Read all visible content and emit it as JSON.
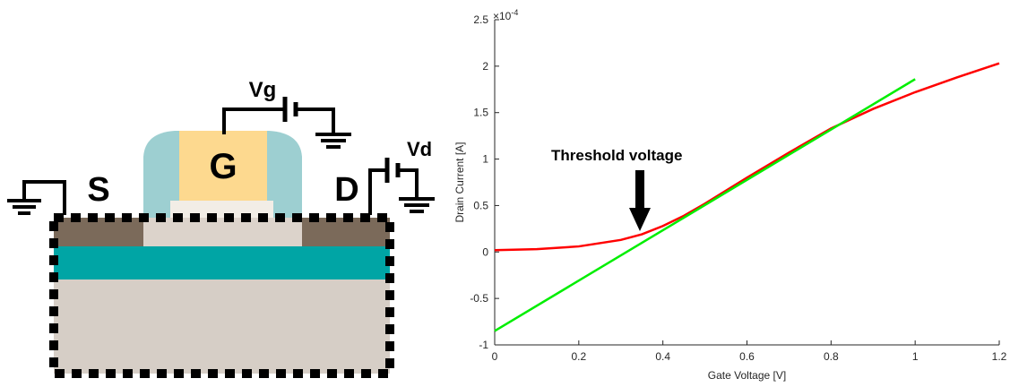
{
  "diagram": {
    "vg": "Vg",
    "gate": "G",
    "source": "S",
    "drain": "D",
    "vd": "Vd"
  },
  "chart_data": {
    "type": "line",
    "x_label": "Gate Voltage [V]",
    "y_label": "Drain Current [A]",
    "y_multiplier": {
      "base": "×10",
      "exponent": "-4"
    },
    "annotation": "Threshold voltage",
    "xlim": [
      0,
      1.2
    ],
    "ylim": [
      -1,
      2.5
    ],
    "xticks": [
      0,
      0.2,
      0.4,
      0.6,
      0.8,
      1,
      1.2
    ],
    "yticks": [
      -1,
      -0.5,
      0,
      0.5,
      1,
      1.5,
      2,
      2.5
    ],
    "series": [
      {
        "color": "#ff0000",
        "x": [
          0,
          0.1,
          0.2,
          0.3,
          0.35,
          0.4,
          0.45,
          0.5,
          0.6,
          0.7,
          0.8,
          0.9,
          1.0,
          1.1,
          1.2
        ],
        "values": [
          0.02,
          0.03,
          0.06,
          0.13,
          0.19,
          0.28,
          0.39,
          0.52,
          0.8,
          1.07,
          1.33,
          1.54,
          1.72,
          1.88,
          2.03
        ]
      },
      {
        "color": "#00ee00",
        "x": [
          0,
          1
        ],
        "values": [
          -0.85,
          1.86
        ]
      }
    ]
  }
}
